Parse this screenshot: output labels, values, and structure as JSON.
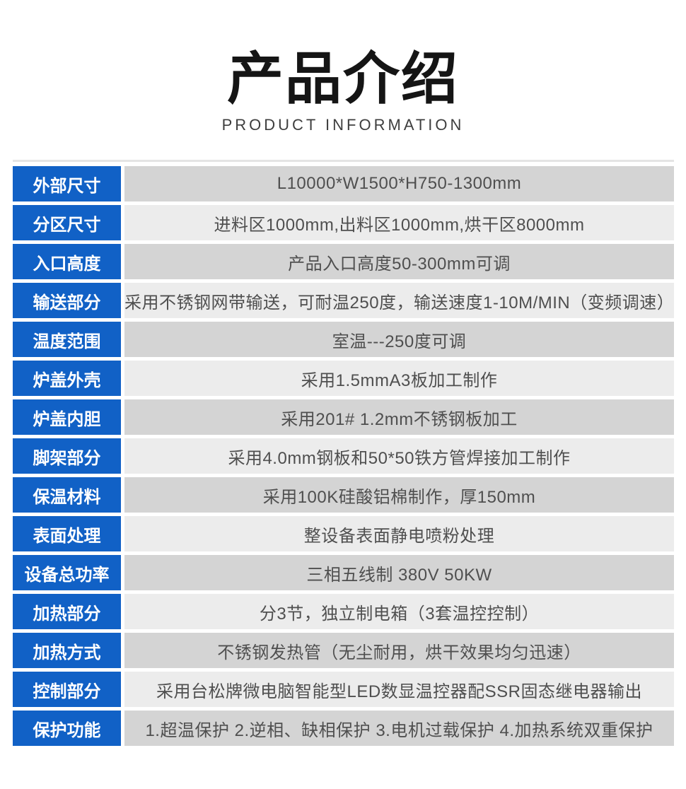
{
  "header": {
    "title": "产品介绍",
    "subtitle": "PRODUCT INFORMATION"
  },
  "colors": {
    "label_bg": "#1161c6",
    "label_text": "#ffffff",
    "row_dark": "#d4d4d4",
    "row_light": "#ececec",
    "value_text": "#4f4f4f"
  },
  "table": {
    "rows": [
      {
        "label": "外部尺寸",
        "value": "L10000*W1500*H750-1300mm"
      },
      {
        "label": "分区尺寸",
        "value": "进料区1000mm,出料区1000mm,烘干区8000mm"
      },
      {
        "label": "入口高度",
        "value": "产品入口高度50-300mm可调"
      },
      {
        "label": "输送部分",
        "value": "采用不锈钢网带输送，可耐温250度，输送速度1-10M/MIN（变频调速）"
      },
      {
        "label": "温度范围",
        "value": "室温---250度可调"
      },
      {
        "label": "炉盖外壳",
        "value": "采用1.5mmA3板加工制作"
      },
      {
        "label": "炉盖内胆",
        "value": "采用201# 1.2mm不锈钢板加工"
      },
      {
        "label": "脚架部分",
        "value": "采用4.0mm钢板和50*50铁方管焊接加工制作"
      },
      {
        "label": "保温材料",
        "value": "采用100K硅酸铝棉制作，厚150mm"
      },
      {
        "label": "表面处理",
        "value": "整设备表面静电喷粉处理"
      },
      {
        "label": "设备总功率",
        "value": "三相五线制 380V 50KW"
      },
      {
        "label": "加热部分",
        "value": "分3节，独立制电箱（3套温控控制）"
      },
      {
        "label": "加热方式",
        "value": "不锈钢发热管（无尘耐用，烘干效果均匀迅速）"
      },
      {
        "label": "控制部分",
        "value": "采用台松牌微电脑智能型LED数显温控器配SSR固态继电器输出"
      },
      {
        "label": "保护功能",
        "value": "1.超温保护 2.逆相、缺相保护 3.电机过载保护 4.加热系统双重保护"
      }
    ]
  }
}
